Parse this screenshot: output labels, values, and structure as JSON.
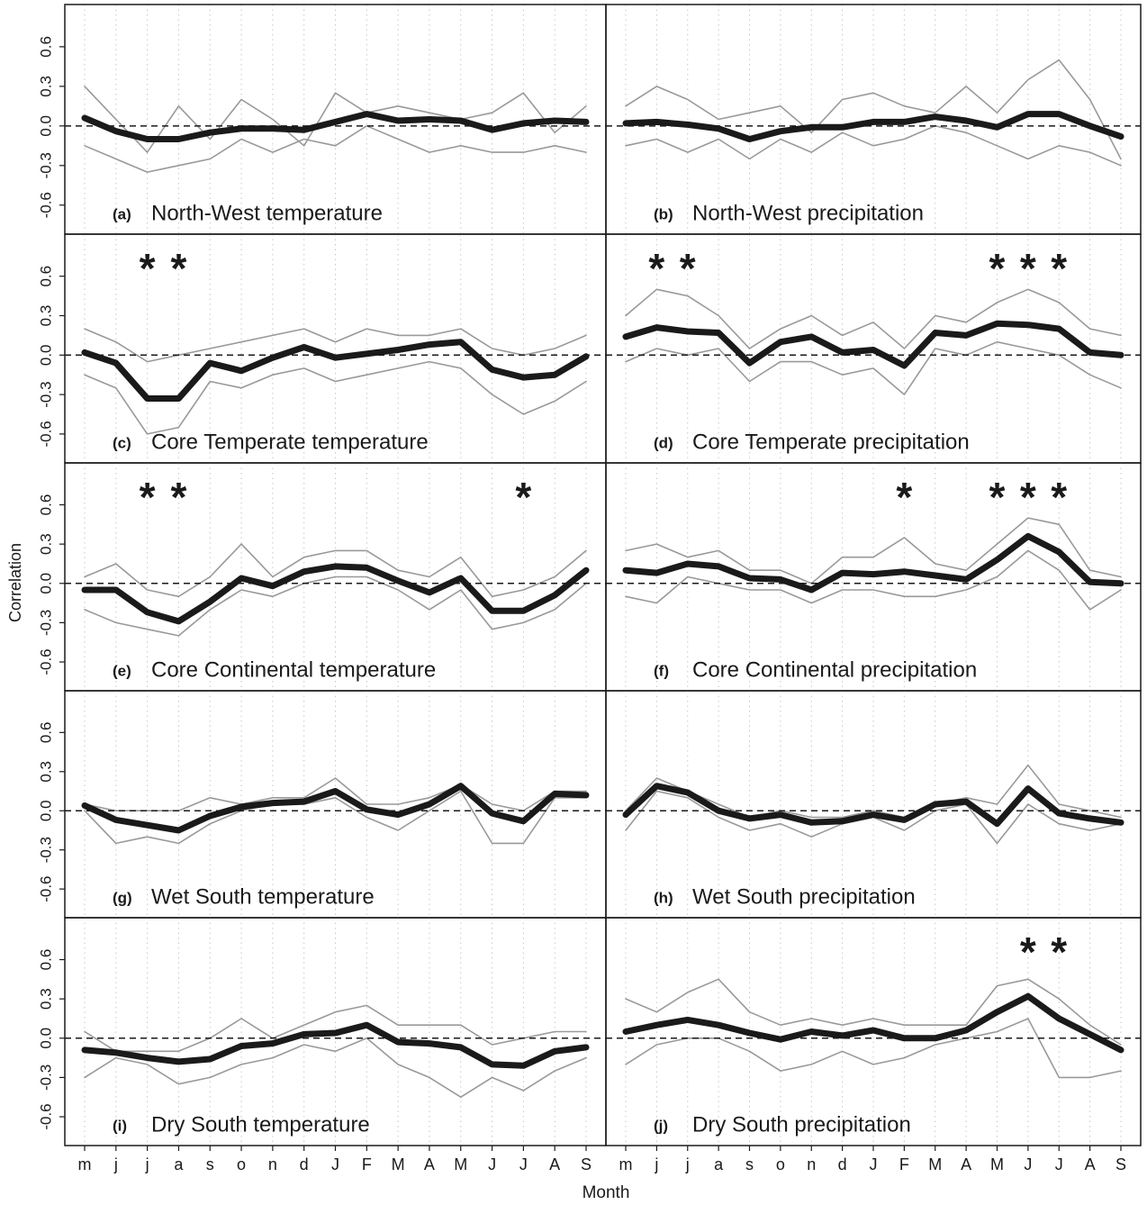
{
  "x_label": "Month",
  "y_label": "Correlation",
  "chart_data": [
    {
      "type": "line",
      "label": "(a)",
      "title": "North-West temperature",
      "categories": [
        "m",
        "j",
        "j",
        "a",
        "s",
        "o",
        "n",
        "d",
        "J",
        "F",
        "M",
        "A",
        "M",
        "J",
        "J",
        "A",
        "S"
      ],
      "series": [
        {
          "color": "#999999",
          "values": [
            0.3,
            0.05,
            -0.2,
            0.15,
            -0.1,
            0.2,
            0.05,
            -0.15,
            0.25,
            0.1,
            0.15,
            0.1,
            0.05,
            0.1,
            0.25,
            -0.05,
            0.15
          ]
        },
        {
          "color": "#999999",
          "values": [
            -0.15,
            -0.25,
            -0.35,
            -0.3,
            -0.25,
            -0.1,
            -0.2,
            -0.1,
            -0.15,
            0.0,
            -0.1,
            -0.2,
            -0.15,
            -0.2,
            -0.2,
            -0.15,
            -0.2
          ]
        },
        {
          "color": "#1a1a1a",
          "values": [
            0.06,
            -0.04,
            -0.1,
            -0.1,
            -0.05,
            -0.02,
            -0.02,
            -0.03,
            0.03,
            0.09,
            0.04,
            0.05,
            0.04,
            -0.03,
            0.02,
            0.04,
            0.03
          ]
        }
      ],
      "ylim": [
        -0.82,
        0.92
      ],
      "yticks": [
        -0.6,
        -0.3,
        {
          "value": 0,
          "label": "0.0"
        },
        0.3,
        0.6
      ],
      "reference_line": 0,
      "grid": true
    },
    {
      "type": "line",
      "label": "(b)",
      "title": "North-West precipitation",
      "categories": [
        "m",
        "j",
        "j",
        "a",
        "s",
        "o",
        "n",
        "d",
        "J",
        "F",
        "M",
        "A",
        "M",
        "J",
        "J",
        "A",
        "S"
      ],
      "series": [
        {
          "color": "#999999",
          "values": [
            0.15,
            0.3,
            0.2,
            0.05,
            0.1,
            0.15,
            -0.05,
            0.2,
            0.25,
            0.15,
            0.1,
            0.3,
            0.1,
            0.35,
            0.5,
            0.2,
            -0.25
          ]
        },
        {
          "color": "#999999",
          "values": [
            -0.15,
            -0.1,
            -0.2,
            -0.1,
            -0.25,
            -0.1,
            -0.2,
            -0.05,
            -0.15,
            -0.1,
            0.0,
            -0.05,
            -0.15,
            -0.25,
            -0.15,
            -0.2,
            -0.3
          ]
        },
        {
          "color": "#1a1a1a",
          "values": [
            0.02,
            0.03,
            0.01,
            -0.02,
            -0.1,
            -0.04,
            -0.01,
            -0.01,
            0.03,
            0.03,
            0.07,
            0.04,
            -0.01,
            0.09,
            0.09,
            0.0,
            -0.08
          ]
        }
      ],
      "ylim": [
        -0.82,
        0.92
      ],
      "reference_line": 0,
      "grid": true
    },
    {
      "type": "line",
      "label": "(c)",
      "title": "Core Temperate temperature",
      "categories": [
        "m",
        "j",
        "j",
        "a",
        "s",
        "o",
        "n",
        "d",
        "J",
        "F",
        "M",
        "A",
        "M",
        "J",
        "J",
        "A",
        "S"
      ],
      "series": [
        {
          "color": "#999999",
          "values": [
            0.2,
            0.1,
            -0.05,
            0.0,
            0.05,
            0.1,
            0.15,
            0.2,
            0.1,
            0.2,
            0.15,
            0.15,
            0.2,
            0.05,
            0.0,
            0.05,
            0.15
          ]
        },
        {
          "color": "#999999",
          "values": [
            -0.15,
            -0.25,
            -0.6,
            -0.55,
            -0.2,
            -0.25,
            -0.15,
            -0.1,
            -0.2,
            -0.15,
            -0.1,
            -0.05,
            -0.1,
            -0.3,
            -0.45,
            -0.35,
            -0.2
          ]
        },
        {
          "color": "#1a1a1a",
          "values": [
            0.02,
            -0.06,
            -0.33,
            -0.33,
            -0.06,
            -0.12,
            -0.02,
            0.06,
            -0.02,
            0.01,
            0.04,
            0.08,
            0.1,
            -0.11,
            -0.17,
            -0.15,
            -0.01
          ]
        }
      ],
      "significance": [
        null,
        null,
        "*",
        "*",
        null,
        null,
        null,
        null,
        null,
        null,
        null,
        null,
        null,
        null,
        null,
        null,
        null
      ],
      "ylim": [
        -0.82,
        0.92
      ],
      "yticks": [
        -0.6,
        -0.3,
        {
          "value": 0,
          "label": "0.0"
        },
        0.3,
        0.6
      ],
      "reference_line": 0,
      "grid": true
    },
    {
      "type": "line",
      "label": "(d)",
      "title": "Core Temperate precipitation",
      "categories": [
        "m",
        "j",
        "j",
        "a",
        "s",
        "o",
        "n",
        "d",
        "J",
        "F",
        "M",
        "A",
        "M",
        "J",
        "J",
        "A",
        "S"
      ],
      "series": [
        {
          "color": "#999999",
          "values": [
            0.3,
            0.5,
            0.45,
            0.3,
            0.05,
            0.2,
            0.3,
            0.15,
            0.25,
            0.05,
            0.3,
            0.25,
            0.4,
            0.5,
            0.4,
            0.2,
            0.15
          ]
        },
        {
          "color": "#999999",
          "values": [
            -0.05,
            0.05,
            0.0,
            0.05,
            -0.2,
            -0.05,
            -0.05,
            -0.15,
            -0.1,
            -0.3,
            0.05,
            0.0,
            0.1,
            0.05,
            0.0,
            -0.15,
            -0.25
          ]
        },
        {
          "color": "#1a1a1a",
          "values": [
            0.14,
            0.21,
            0.18,
            0.17,
            -0.06,
            0.1,
            0.14,
            0.02,
            0.04,
            -0.08,
            0.17,
            0.15,
            0.24,
            0.23,
            0.2,
            0.02,
            0.0
          ]
        }
      ],
      "significance": [
        null,
        "*",
        "*",
        null,
        null,
        null,
        null,
        null,
        null,
        null,
        null,
        null,
        "*",
        "*",
        "*",
        null,
        null
      ],
      "ylim": [
        -0.82,
        0.92
      ],
      "reference_line": 0,
      "grid": true
    },
    {
      "type": "line",
      "label": "(e)",
      "title": "Core Continental temperature",
      "categories": [
        "m",
        "j",
        "j",
        "a",
        "s",
        "o",
        "n",
        "d",
        "J",
        "F",
        "M",
        "A",
        "M",
        "J",
        "J",
        "A",
        "S"
      ],
      "series": [
        {
          "color": "#999999",
          "values": [
            0.05,
            0.15,
            -0.05,
            -0.1,
            0.05,
            0.3,
            0.05,
            0.2,
            0.25,
            0.25,
            0.1,
            0.05,
            0.2,
            -0.1,
            -0.05,
            0.05,
            0.25
          ]
        },
        {
          "color": "#999999",
          "values": [
            -0.2,
            -0.3,
            -0.35,
            -0.4,
            -0.2,
            -0.05,
            -0.1,
            0.0,
            0.05,
            0.05,
            -0.05,
            -0.2,
            -0.05,
            -0.35,
            -0.3,
            -0.2,
            0.0
          ]
        },
        {
          "color": "#1a1a1a",
          "values": [
            -0.05,
            -0.05,
            -0.22,
            -0.29,
            -0.14,
            0.04,
            -0.02,
            0.09,
            0.13,
            0.12,
            0.02,
            -0.07,
            0.04,
            -0.21,
            -0.21,
            -0.09,
            0.1
          ]
        }
      ],
      "significance": [
        null,
        null,
        "*",
        "*",
        null,
        null,
        null,
        null,
        null,
        null,
        null,
        null,
        null,
        null,
        "*",
        null,
        null
      ],
      "ylim": [
        -0.82,
        0.92
      ],
      "yticks": [
        -0.6,
        -0.3,
        {
          "value": 0,
          "label": "0.0"
        },
        0.3,
        0.6
      ],
      "reference_line": 0,
      "grid": true
    },
    {
      "type": "line",
      "label": "(f)",
      "title": "Core Continental precipitation",
      "categories": [
        "m",
        "j",
        "j",
        "a",
        "s",
        "o",
        "n",
        "d",
        "J",
        "F",
        "M",
        "A",
        "M",
        "J",
        "J",
        "A",
        "S"
      ],
      "series": [
        {
          "color": "#999999",
          "values": [
            0.25,
            0.3,
            0.2,
            0.25,
            0.1,
            0.1,
            0.0,
            0.2,
            0.2,
            0.35,
            0.15,
            0.1,
            0.3,
            0.5,
            0.45,
            0.1,
            0.05
          ]
        },
        {
          "color": "#999999",
          "values": [
            -0.1,
            -0.15,
            0.05,
            0.0,
            -0.05,
            -0.05,
            -0.15,
            -0.05,
            -0.05,
            -0.1,
            -0.1,
            -0.05,
            0.05,
            0.25,
            0.1,
            -0.2,
            -0.05
          ]
        },
        {
          "color": "#1a1a1a",
          "values": [
            0.1,
            0.08,
            0.15,
            0.13,
            0.04,
            0.03,
            -0.05,
            0.08,
            0.07,
            0.09,
            0.06,
            0.03,
            0.18,
            0.36,
            0.24,
            0.01,
            0.0
          ]
        }
      ],
      "significance": [
        null,
        null,
        null,
        null,
        null,
        null,
        null,
        null,
        null,
        "*",
        null,
        null,
        "*",
        "*",
        "*",
        null,
        null
      ],
      "ylim": [
        -0.82,
        0.92
      ],
      "reference_line": 0,
      "grid": true
    },
    {
      "type": "line",
      "label": "(g)",
      "title": "Wet South temperature",
      "categories": [
        "m",
        "j",
        "j",
        "a",
        "s",
        "o",
        "n",
        "d",
        "J",
        "F",
        "M",
        "A",
        "M",
        "J",
        "J",
        "A",
        "S"
      ],
      "series": [
        {
          "color": "#999999",
          "values": [
            0.05,
            0.0,
            0.0,
            0.0,
            0.1,
            0.05,
            0.1,
            0.1,
            0.25,
            0.05,
            0.05,
            0.1,
            0.2,
            0.05,
            0.0,
            0.15,
            0.15
          ]
        },
        {
          "color": "#999999",
          "values": [
            0.0,
            -0.25,
            -0.2,
            -0.25,
            -0.1,
            0.0,
            0.05,
            0.05,
            0.1,
            -0.05,
            -0.15,
            0.0,
            0.15,
            -0.25,
            -0.25,
            0.1,
            0.1
          ]
        },
        {
          "color": "#1a1a1a",
          "values": [
            0.04,
            -0.07,
            -0.11,
            -0.15,
            -0.04,
            0.03,
            0.06,
            0.07,
            0.15,
            0.01,
            -0.03,
            0.05,
            0.19,
            -0.02,
            -0.08,
            0.13,
            0.12
          ]
        }
      ],
      "ylim": [
        -0.82,
        0.92
      ],
      "yticks": [
        -0.6,
        -0.3,
        {
          "value": 0,
          "label": "0.0"
        },
        0.3,
        0.6
      ],
      "reference_line": 0,
      "grid": true
    },
    {
      "type": "line",
      "label": "(h)",
      "title": "Wet South precipitation",
      "categories": [
        "m",
        "j",
        "j",
        "a",
        "s",
        "o",
        "n",
        "d",
        "J",
        "F",
        "M",
        "A",
        "M",
        "J",
        "J",
        "A",
        "S"
      ],
      "series": [
        {
          "color": "#999999",
          "values": [
            0.0,
            0.25,
            0.15,
            0.05,
            -0.05,
            0.0,
            -0.05,
            -0.05,
            0.0,
            -0.05,
            0.05,
            0.1,
            0.05,
            0.35,
            0.05,
            0.0,
            -0.05
          ]
        },
        {
          "color": "#999999",
          "values": [
            -0.15,
            0.15,
            0.1,
            -0.05,
            -0.15,
            -0.1,
            -0.2,
            -0.1,
            -0.05,
            -0.15,
            0.0,
            0.05,
            -0.25,
            0.05,
            -0.1,
            -0.15,
            -0.1
          ]
        },
        {
          "color": "#1a1a1a",
          "values": [
            -0.03,
            0.19,
            0.14,
            0.0,
            -0.06,
            -0.03,
            -0.09,
            -0.08,
            -0.03,
            -0.07,
            0.05,
            0.07,
            -0.1,
            0.17,
            -0.02,
            -0.06,
            -0.09
          ]
        }
      ],
      "ylim": [
        -0.82,
        0.92
      ],
      "reference_line": 0,
      "grid": true
    },
    {
      "type": "line",
      "label": "(i)",
      "title": "Dry South temperature",
      "categories": [
        "m",
        "j",
        "j",
        "a",
        "s",
        "o",
        "n",
        "d",
        "J",
        "F",
        "M",
        "A",
        "M",
        "J",
        "J",
        "A",
        "S"
      ],
      "series": [
        {
          "color": "#999999",
          "values": [
            0.05,
            -0.1,
            -0.1,
            -0.1,
            0.0,
            0.15,
            0.0,
            0.1,
            0.2,
            0.25,
            0.1,
            0.1,
            0.1,
            -0.05,
            0.0,
            0.05,
            0.05
          ]
        },
        {
          "color": "#999999",
          "values": [
            -0.3,
            -0.15,
            -0.2,
            -0.35,
            -0.3,
            -0.2,
            -0.15,
            -0.05,
            -0.1,
            0.0,
            -0.2,
            -0.3,
            -0.45,
            -0.3,
            -0.4,
            -0.25,
            -0.15
          ]
        },
        {
          "color": "#1a1a1a",
          "values": [
            -0.09,
            -0.11,
            -0.15,
            -0.18,
            -0.16,
            -0.06,
            -0.04,
            0.03,
            0.04,
            0.1,
            -0.03,
            -0.04,
            -0.07,
            -0.2,
            -0.21,
            -0.1,
            -0.07
          ]
        }
      ],
      "ylim": [
        -0.82,
        0.92
      ],
      "yticks": [
        -0.6,
        -0.3,
        {
          "value": 0,
          "label": "0.0"
        },
        0.3,
        0.6
      ],
      "reference_line": 0,
      "grid": true
    },
    {
      "type": "line",
      "label": "(j)",
      "title": "Dry South precipitation",
      "categories": [
        "m",
        "j",
        "j",
        "a",
        "s",
        "o",
        "n",
        "d",
        "J",
        "F",
        "M",
        "A",
        "M",
        "J",
        "J",
        "A",
        "S"
      ],
      "series": [
        {
          "color": "#999999",
          "values": [
            0.3,
            0.2,
            0.35,
            0.45,
            0.2,
            0.1,
            0.15,
            0.1,
            0.15,
            0.1,
            0.1,
            0.1,
            0.4,
            0.45,
            0.3,
            0.1,
            -0.05
          ]
        },
        {
          "color": "#999999",
          "values": [
            -0.2,
            -0.05,
            0.0,
            0.0,
            -0.1,
            -0.25,
            -0.2,
            -0.1,
            -0.2,
            -0.15,
            -0.05,
            0.0,
            0.05,
            0.15,
            -0.3,
            -0.3,
            -0.25
          ]
        },
        {
          "color": "#1a1a1a",
          "values": [
            0.05,
            0.1,
            0.14,
            0.1,
            0.04,
            -0.01,
            0.05,
            0.02,
            0.06,
            0.0,
            0.0,
            0.06,
            0.2,
            0.32,
            0.15,
            0.03,
            -0.09
          ]
        }
      ],
      "significance": [
        null,
        null,
        null,
        null,
        null,
        null,
        null,
        null,
        null,
        null,
        null,
        null,
        null,
        "*",
        "*",
        null,
        null
      ],
      "ylim": [
        -0.82,
        0.92
      ],
      "reference_line": 0,
      "grid": true
    }
  ]
}
